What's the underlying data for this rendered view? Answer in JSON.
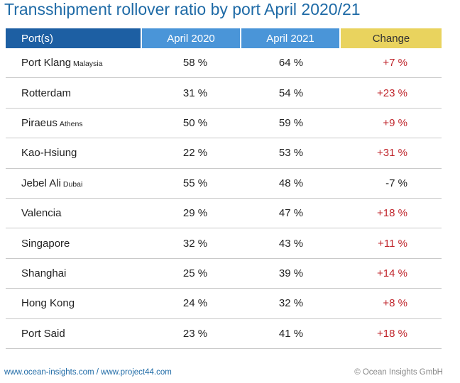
{
  "header": {
    "title": "Transshipment rollover ratio by port April 2020/21"
  },
  "table": {
    "columns": [
      "Port(s)",
      "April 2020",
      "April 2021",
      "Change"
    ],
    "rows": [
      {
        "port": "Port Klang",
        "note": "Malaysia",
        "april_2020": "58 %",
        "april_2021": "64 %",
        "change": "+7 %"
      },
      {
        "port": "Rotterdam",
        "april_2020": "31 %",
        "april_2021": "54 %",
        "change": "+23 %"
      },
      {
        "port": "Piraeus",
        "note": "Athens",
        "april_2020": "50 %",
        "april_2021": "59 %",
        "change": "+9 %"
      },
      {
        "port": "Kao-Hsiung",
        "april_2020": "22 %",
        "april_2021": "53 %",
        "change": "+31 %"
      },
      {
        "port": "Jebel Ali",
        "note": "Dubai",
        "april_2020": "55 %",
        "april_2021": "48 %",
        "change": "-7 %"
      },
      {
        "port": "Valencia",
        "april_2020": "29 %",
        "april_2021": "47 %",
        "change": "+18 %"
      },
      {
        "port": "Singapore",
        "april_2020": "32 %",
        "april_2021": "43 %",
        "change": "+11 %"
      },
      {
        "port": "Shanghai",
        "april_2020": "25 %",
        "april_2021": "39 %",
        "change": "+14 %"
      },
      {
        "port": "Hong Kong",
        "april_2020": "24 %",
        "april_2021": "32 %",
        "change": "+8 %"
      },
      {
        "port": "Port Said",
        "april_2020": "23 %",
        "april_2021": "41 %",
        "change": "+18 %"
      }
    ]
  },
  "footer": {
    "links": "www.ocean-insights.com / www.project44.com",
    "copyright": "© Ocean Insights GmbH"
  }
}
